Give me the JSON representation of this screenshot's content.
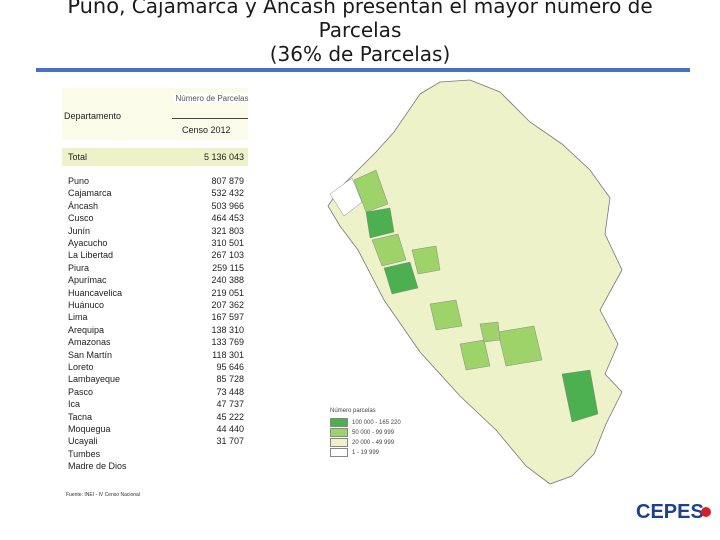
{
  "title": {
    "line1_a": "Puno",
    "line1_b": ", Cajamarca y Áncash presentan el mayor número de",
    "line2": "Parcelas",
    "line3": "(36% de Parcelas)"
  },
  "table": {
    "header_department": "Departamento",
    "header_number": "Número de Parcelas",
    "header_census": "Censo 2012",
    "total_label": "Total",
    "total_value": "5 136 043",
    "rows": [
      {
        "name": "Puno",
        "value": "807 879"
      },
      {
        "name": "Cajamarca",
        "value": "532 432"
      },
      {
        "name": "Áncash",
        "value": "503 966"
      },
      {
        "name": "Cusco",
        "value": "464 453"
      },
      {
        "name": "Junín",
        "value": "321 803"
      },
      {
        "name": "Ayacucho",
        "value": "310 501"
      },
      {
        "name": "La Libertad",
        "value": "267 103"
      },
      {
        "name": "Piura",
        "value": "259 115"
      },
      {
        "name": "Apurímac",
        "value": "240 388"
      },
      {
        "name": "Huancavelica",
        "value": "219 051"
      },
      {
        "name": "Huánuco",
        "value": "207 362"
      },
      {
        "name": "Lima",
        "value": "167 597"
      },
      {
        "name": "Arequipa",
        "value": "138 310"
      },
      {
        "name": "Amazonas",
        "value": "133 769"
      },
      {
        "name": "San Martín",
        "value": "118 301"
      },
      {
        "name": "Loreto",
        "value": "95 646"
      },
      {
        "name": "Lambayeque",
        "value": "85 728"
      },
      {
        "name": "Pasco",
        "value": "73 448"
      },
      {
        "name": "Ica",
        "value": "47 737"
      },
      {
        "name": "Tacna",
        "value": "45 222"
      },
      {
        "name": "Moquegua",
        "value": "44 440"
      },
      {
        "name": "Ucayali",
        "value": "31 707"
      },
      {
        "name": "Tumbes",
        "value": ""
      },
      {
        "name": "Madre de Dios",
        "value": ""
      }
    ],
    "source": "Fuente: INEI - IV Censo Nacional"
  },
  "map": {
    "legend_title": "Número parcelas",
    "legend_items": [
      {
        "label": "100 000 - 165 220",
        "color": "#4caf50"
      },
      {
        "label": "50 000 - 99 999",
        "color": "#9ed36a"
      },
      {
        "label": "20 000 - 49 999",
        "color": "#eef2c9"
      },
      {
        "label": "1 - 19 999",
        "color": "#ffffff"
      }
    ]
  },
  "logo": {
    "text": "CEPES"
  },
  "colors": {
    "accent": "#4472c4",
    "map_fill": "#eef2c9",
    "logo_blue": "#1f3f8f",
    "logo_red": "#d62027"
  }
}
